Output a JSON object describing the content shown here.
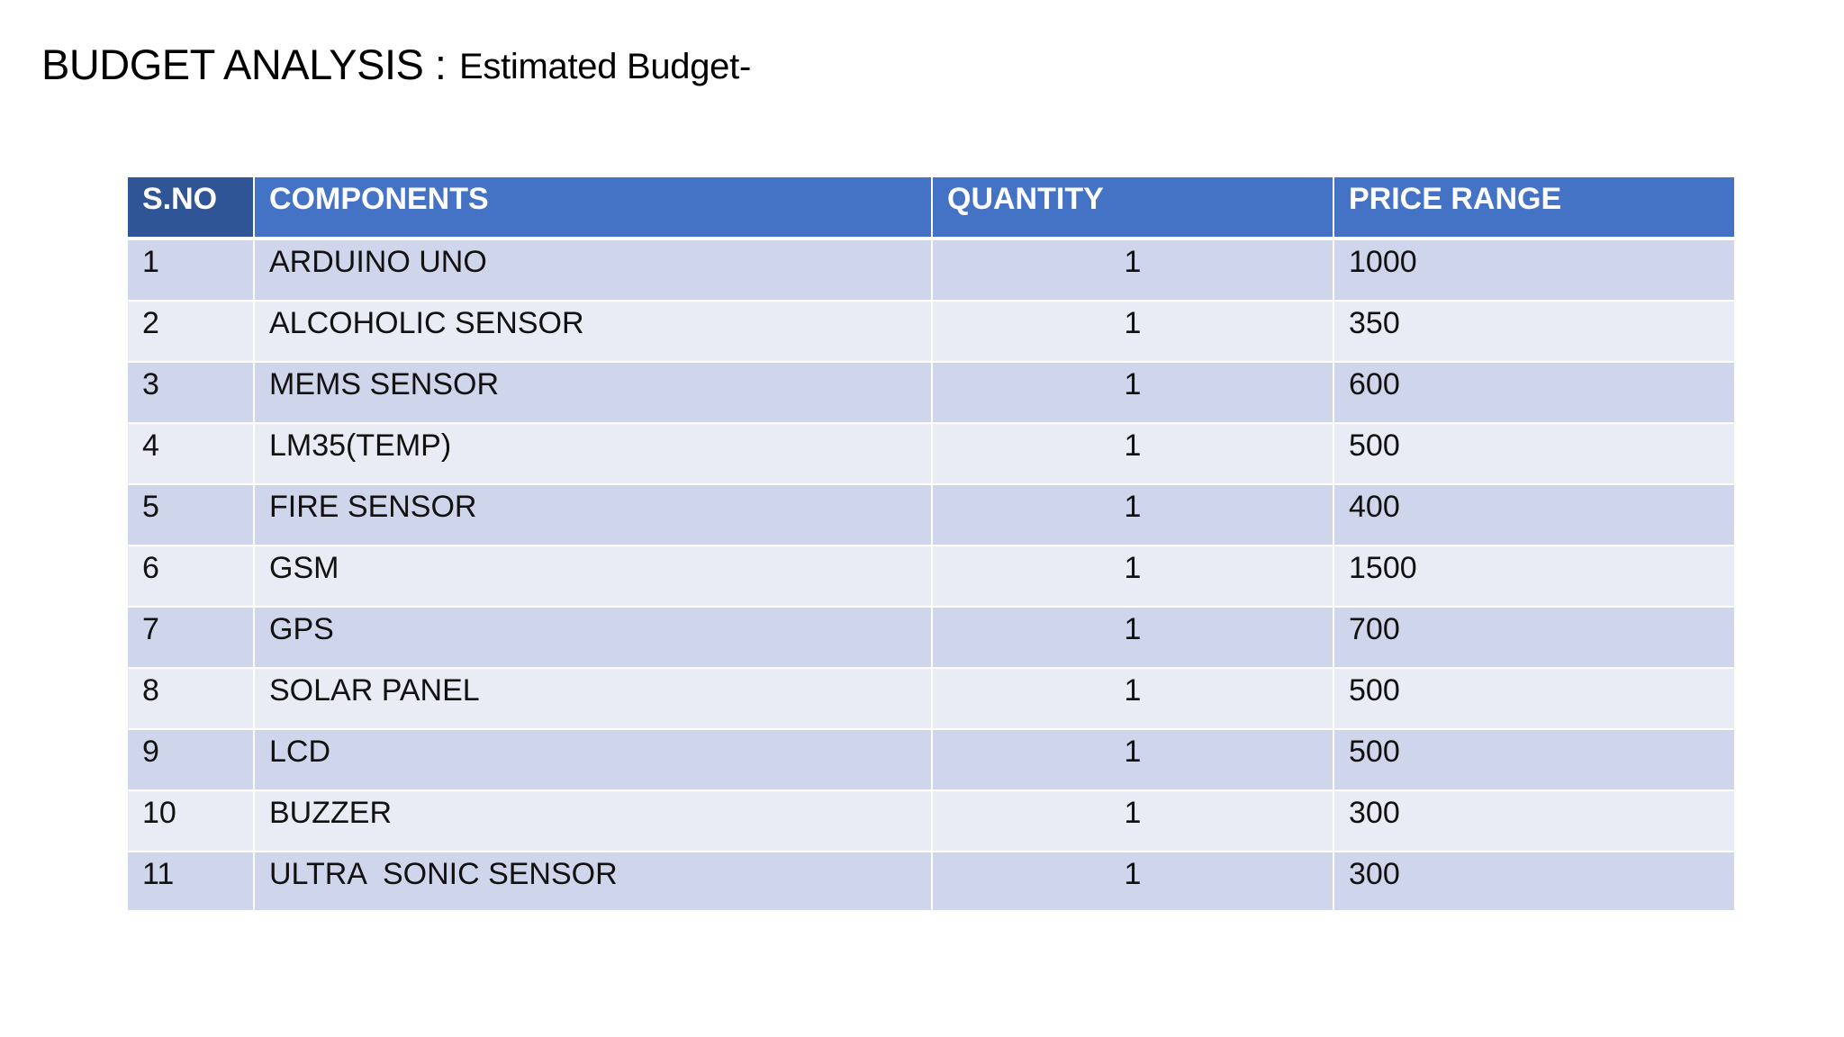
{
  "slide": {
    "title": "BUDGET ANALYSIS :",
    "subtitle": "Estimated Budget-"
  },
  "table": {
    "headers": [
      "S.NO",
      "COMPONENTS",
      "QUANTITY",
      "PRICE RANGE"
    ],
    "rows": [
      [
        "1",
        "ARDUINO UNO",
        "1",
        "1000"
      ],
      [
        "2",
        "ALCOHOLIC SENSOR",
        "1",
        "350"
      ],
      [
        "3",
        "MEMS SENSOR",
        "1",
        "600"
      ],
      [
        "4",
        "LM35(TEMP)",
        "1",
        "500"
      ],
      [
        "5",
        "FIRE SENSOR",
        "1",
        "400"
      ],
      [
        "6",
        "GSM",
        "1",
        "1500"
      ],
      [
        "7",
        "GPS",
        "1",
        "700"
      ],
      [
        "8",
        "SOLAR PANEL",
        "1",
        "500"
      ],
      [
        "9",
        "LCD",
        "1",
        "500"
      ],
      [
        "10",
        "BUZZER",
        "1",
        "300"
      ],
      [
        "11",
        "ULTRA  SONIC SENSOR",
        "1",
        "300"
      ]
    ]
  },
  "colors": {
    "header_accent": "#4472c4",
    "header_first_col": "#2f5597",
    "row_band_dark": "#cfd5ea",
    "row_band_light": "#e9ebf5"
  }
}
